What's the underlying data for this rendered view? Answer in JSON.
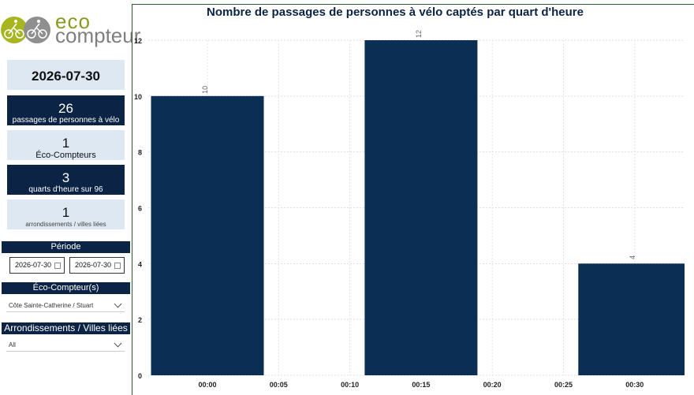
{
  "logo": {
    "eco": "eco",
    "compteur": "compteur"
  },
  "sidebar": {
    "date": "2026-07-30",
    "stats": [
      {
        "value": "26",
        "label": "passages de personnes à vélo"
      },
      {
        "value": "1",
        "label": "Éco-Compteurs"
      },
      {
        "value": "3",
        "label": "quarts d'heure sur 96"
      },
      {
        "value": "1",
        "label": "arrondissements / villes liées"
      }
    ],
    "periode": {
      "heading": "Période",
      "start": "2026-07-30",
      "end": "2026-07-30"
    },
    "compteurs": {
      "heading": "Éco-Compteur(s)",
      "selected": "Côte Sainte-Catherine / Stuart"
    },
    "arrondissements": {
      "heading": "Arrondissements / Villes liées",
      "selected": "All"
    }
  },
  "colors": {
    "bar": "#0b2f54",
    "dark": "#0b2344",
    "light": "#dde8f3"
  },
  "chart_data": {
    "type": "bar",
    "title": "Nombre de passages de personnes à vélo captés par quart d'heure",
    "categories": [
      "00:00",
      "00:05",
      "00:10",
      "00:15",
      "00:20",
      "00:25",
      "00:30"
    ],
    "bars": [
      {
        "x": "00:00",
        "value": 10
      },
      {
        "x": "00:15",
        "value": 12
      },
      {
        "x": "00:30",
        "value": 4
      }
    ],
    "y_ticks": [
      0,
      2,
      4,
      6,
      8,
      10,
      12
    ],
    "ylim": [
      0,
      12
    ],
    "grid": true
  }
}
